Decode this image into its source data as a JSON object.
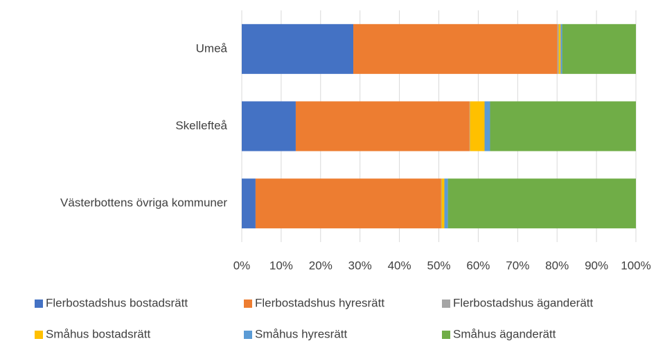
{
  "chart_data": {
    "type": "stacked_bar_horizontal",
    "categories": [
      "Umeå",
      "Skellefteå",
      "Västerbottens övriga kommuner"
    ],
    "series": [
      {
        "name": "Flerbostadshus bostadsrätt",
        "color": "#4472c4",
        "values": [
          28.3,
          13.7,
          3.5
        ]
      },
      {
        "name": "Flerbostadshus hyresrätt",
        "color": "#ed7d31",
        "values": [
          51.8,
          44.1,
          47.1
        ]
      },
      {
        "name": "Flerbostadshus äganderätt",
        "color": "#a5a5a5",
        "values": [
          0.3,
          0.1,
          0.1
        ]
      },
      {
        "name": "Småhus bostadsrätt",
        "color": "#ffc000",
        "values": [
          0.5,
          3.7,
          0.7
        ]
      },
      {
        "name": "Småhus hyresrätt",
        "color": "#5b9bd5",
        "values": [
          0.4,
          1.4,
          0.9
        ]
      },
      {
        "name": "Småhus äganderätt",
        "color": "#70ad47",
        "values": [
          18.7,
          37.0,
          47.7
        ]
      }
    ],
    "xlim": [
      0,
      100
    ],
    "xticks": [
      {
        "value": 0,
        "label": "0%"
      },
      {
        "value": 10,
        "label": "10%"
      },
      {
        "value": 20,
        "label": "20%"
      },
      {
        "value": 30,
        "label": "30%"
      },
      {
        "value": 40,
        "label": "40%"
      },
      {
        "value": 50,
        "label": "50%"
      },
      {
        "value": 60,
        "label": "60%"
      },
      {
        "value": 70,
        "label": "70%"
      },
      {
        "value": 80,
        "label": "80%"
      },
      {
        "value": 90,
        "label": "90%"
      },
      {
        "value": 100,
        "label": "100%"
      }
    ],
    "grid": true,
    "legend": "bottom"
  }
}
